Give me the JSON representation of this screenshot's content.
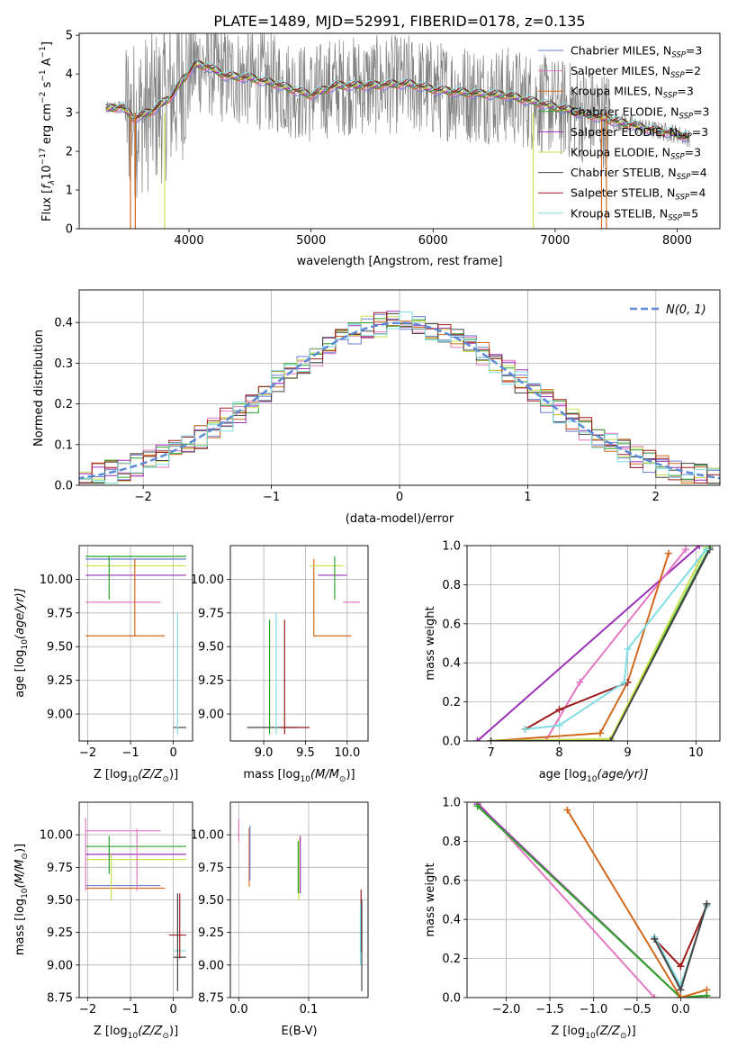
{
  "figure": {
    "title": "PLATE=1489, MJD=52991, FIBERID=0178, z=0.135"
  },
  "series_styles": [
    {
      "name": "Chabrier MILES",
      "sub": "N",
      "subscript": "SSP",
      "eq": "=3",
      "color": "#6b7fd6"
    },
    {
      "name": "Salpeter MILES",
      "sub": "N",
      "subscript": "SSP",
      "eq": "=2",
      "color": "#e377c2"
    },
    {
      "name": "Kroupa MILES",
      "sub": "N",
      "subscript": "SSP",
      "eq": "=3",
      "color": "#d2691e"
    },
    {
      "name": "Chabrier ELODIE",
      "sub": "N",
      "subscript": "SSP",
      "eq": "=3",
      "color": "#2ca02c"
    },
    {
      "name": "Salpeter ELODIE",
      "sub": "N",
      "subscript": "SSP",
      "eq": "=3",
      "color": "#9b30b8"
    },
    {
      "name": "Kroupa ELODIE",
      "sub": "N",
      "subscript": "SSP",
      "eq": "=3",
      "color": "#c8e04a"
    },
    {
      "name": "Chabrier STELIB",
      "sub": "N",
      "subscript": "SSP",
      "eq": "=4",
      "color": "#444444"
    },
    {
      "name": "Salpeter STELIB",
      "sub": "N",
      "subscript": "SSP",
      "eq": "=4",
      "color": "#9b1c1c"
    },
    {
      "name": "Kroupa STELIB",
      "sub": "N",
      "subscript": "SSP",
      "eq": "=5",
      "color": "#7fdde3"
    }
  ],
  "chart_data": [
    {
      "id": "spectrum",
      "type": "line",
      "xlabel": "wavelength [Angstrom, rest frame]",
      "ylabel_main": "Flux [",
      "ylabel_f": "f",
      "ylabel_lambda": "λ",
      "ylabel_rest": "10",
      "ylabel_exp": "−17",
      "ylabel_units": " erg cm",
      "ylabel_exp2": "−2",
      "ylabel_s": " s",
      "ylabel_exp3": "−1",
      "ylabel_A": " A",
      "ylabel_exp4": "−1",
      "ylabel_end": "]",
      "xlim": [
        3100,
        8350
      ],
      "ylim": [
        0,
        5.05
      ],
      "xticks": [
        4000,
        5000,
        6000,
        7000,
        8000
      ],
      "yticks": [
        0,
        1,
        2,
        3,
        4,
        5
      ],
      "data_color": "#808080",
      "legend_position": "right",
      "continuum": [
        [
          3320,
          3.1
        ],
        [
          3450,
          3.15
        ],
        [
          3550,
          2.85
        ],
        [
          3700,
          3.05
        ],
        [
          3850,
          3.4
        ],
        [
          3950,
          3.85
        ],
        [
          4050,
          4.25
        ],
        [
          4150,
          4.2
        ],
        [
          4300,
          3.95
        ],
        [
          4500,
          3.9
        ],
        [
          4700,
          3.75
        ],
        [
          4900,
          3.55
        ],
        [
          5000,
          3.45
        ],
        [
          5200,
          3.7
        ],
        [
          5500,
          3.7
        ],
        [
          5800,
          3.75
        ],
        [
          6000,
          3.6
        ],
        [
          6300,
          3.5
        ],
        [
          6600,
          3.45
        ],
        [
          6800,
          3.3
        ],
        [
          7000,
          3.15
        ],
        [
          7200,
          3.0
        ],
        [
          7400,
          2.85
        ],
        [
          7600,
          2.7
        ],
        [
          7800,
          2.55
        ],
        [
          8000,
          2.45
        ],
        [
          8100,
          2.35
        ]
      ]
    },
    {
      "id": "residuals",
      "type": "histogram",
      "xlabel": "(data-model)/error",
      "ylabel": "Normed distribution",
      "xlim": [
        -2.5,
        2.5
      ],
      "ylim": [
        0,
        0.48
      ],
      "xticks": [
        -2,
        -1,
        0,
        1,
        2
      ],
      "yticks": [
        0.0,
        0.1,
        0.2,
        0.3,
        0.4
      ],
      "legend": "N(0, 1)",
      "legend_position": "top-right",
      "normal_color": "#5b8bd6"
    },
    {
      "id": "age-Z",
      "type": "errorbar",
      "xlabel": "Z [log",
      "xlabel_sub": "10",
      "xlabel_rest": "(Z/Z",
      "xlabel_sun": "⊙",
      "xlabel_end": ")]",
      "ylabel": "age  [log",
      "ylabel_sub": "10",
      "ylabel_rest": "(age/yr)]",
      "xlim": [
        -2.2,
        0.45
      ],
      "ylim": [
        8.8,
        10.25
      ],
      "xticks": [
        -2,
        -1,
        0
      ],
      "yticks": [
        9.0,
        9.25,
        9.5,
        9.75,
        10.0
      ],
      "segments": [
        {
          "s": 0,
          "pts": [
            [
              -2.05,
              10.15
            ],
            [
              0.3,
              10.15
            ]
          ]
        },
        {
          "s": 4,
          "pts": [
            [
              -2.05,
              10.03
            ],
            [
              0.3,
              10.03
            ]
          ]
        },
        {
          "s": 5,
          "pts": [
            [
              -2.05,
              10.1
            ],
            [
              0.3,
              10.1
            ]
          ]
        },
        {
          "s": 3,
          "pts": [
            [
              -2.05,
              10.17
            ],
            [
              0.3,
              10.17
            ]
          ]
        },
        {
          "s": 1,
          "pts": [
            [
              -2.05,
              9.83
            ],
            [
              -0.3,
              9.83
            ]
          ]
        },
        {
          "s": 2,
          "pts": [
            [
              -2.05,
              9.58
            ],
            [
              -0.2,
              9.58
            ]
          ]
        },
        {
          "s": 2,
          "pts": [
            [
              -0.9,
              9.58
            ],
            [
              -0.9,
              10.15
            ]
          ]
        },
        {
          "s": 6,
          "pts": [
            [
              0.0,
              8.9
            ],
            [
              0.3,
              8.9
            ]
          ]
        },
        {
          "s": 8,
          "pts": [
            [
              0.1,
              8.85
            ],
            [
              0.1,
              9.75
            ]
          ]
        },
        {
          "s": 3,
          "pts": [
            [
              -1.5,
              9.85
            ],
            [
              -1.5,
              10.17
            ]
          ]
        }
      ]
    },
    {
      "id": "age-mass",
      "type": "errorbar",
      "xlabel": "mass [log",
      "xlabel_sub": "10",
      "xlabel_rest": "(M/M",
      "xlabel_sun": "⊙",
      "xlabel_end": ")]",
      "xlim": [
        8.6,
        10.25
      ],
      "ylim": [
        8.8,
        10.25
      ],
      "xticks": [
        9.0,
        9.5,
        10.0
      ],
      "yticks": [
        9.0,
        9.25,
        9.5,
        9.75,
        10.0
      ],
      "segments": [
        {
          "s": 6,
          "pts": [
            [
              8.8,
              8.9
            ],
            [
              9.4,
              8.9
            ]
          ]
        },
        {
          "s": 7,
          "pts": [
            [
              9.2,
              8.9
            ],
            [
              9.55,
              8.9
            ]
          ]
        },
        {
          "s": 8,
          "pts": [
            [
              9.15,
              8.85
            ],
            [
              9.15,
              9.75
            ]
          ]
        },
        {
          "s": 7,
          "pts": [
            [
              9.25,
              8.85
            ],
            [
              9.25,
              9.7
            ]
          ]
        },
        {
          "s": 3,
          "pts": [
            [
              9.07,
              8.85
            ],
            [
              9.07,
              9.7
            ]
          ]
        },
        {
          "s": 2,
          "pts": [
            [
              9.6,
              9.58
            ],
            [
              10.05,
              9.58
            ]
          ]
        },
        {
          "s": 2,
          "pts": [
            [
              9.6,
              9.58
            ],
            [
              9.6,
              10.15
            ]
          ]
        },
        {
          "s": 5,
          "pts": [
            [
              9.55,
              10.1
            ],
            [
              9.95,
              10.1
            ]
          ]
        },
        {
          "s": 4,
          "pts": [
            [
              9.65,
              10.03
            ],
            [
              10.0,
              10.03
            ]
          ]
        },
        {
          "s": 1,
          "pts": [
            [
              9.95,
              9.83
            ],
            [
              10.15,
              9.83
            ]
          ]
        },
        {
          "s": 3,
          "pts": [
            [
              9.85,
              9.85
            ],
            [
              9.85,
              10.17
            ]
          ]
        }
      ]
    },
    {
      "id": "massweight-age",
      "type": "line",
      "xlabel": "age  [log",
      "xlabel_sub": "10",
      "xlabel_rest": "(age/yr)]",
      "ylabel": "mass weight",
      "xlim": [
        6.65,
        10.35
      ],
      "ylim": [
        0,
        1.0
      ],
      "xticks": [
        7,
        8,
        9,
        10
      ],
      "yticks": [
        0.0,
        0.2,
        0.4,
        0.6,
        0.8,
        1.0
      ],
      "series": [
        {
          "s": 4,
          "x": [
            6.8,
            10.05
          ],
          "y": [
            0.0,
            1.0
          ]
        },
        {
          "s": 1,
          "x": [
            7.8,
            8.3,
            9.85
          ],
          "y": [
            0.0,
            0.3,
            0.98
          ]
        },
        {
          "s": 2,
          "x": [
            7.0,
            8.6,
            9.0,
            9.6
          ],
          "y": [
            0.0,
            0.04,
            0.3,
            0.96
          ]
        },
        {
          "s": 3,
          "x": [
            7.0,
            8.75,
            10.2
          ],
          "y": [
            0.0,
            0.01,
            0.99
          ]
        },
        {
          "s": 5,
          "x": [
            7.0,
            8.75,
            10.15
          ],
          "y": [
            0.0,
            0.01,
            0.99
          ]
        },
        {
          "s": 6,
          "x": [
            7.0,
            8.75,
            10.2
          ],
          "y": [
            0.0,
            0.0,
            0.98
          ]
        },
        {
          "s": 7,
          "x": [
            7.5,
            8.0,
            9.0
          ],
          "y": [
            0.06,
            0.16,
            0.3
          ]
        },
        {
          "s": 8,
          "x": [
            7.5,
            8.0,
            8.95,
            9.0,
            10.15
          ],
          "y": [
            0.06,
            0.08,
            0.3,
            0.47,
            0.98
          ]
        }
      ]
    },
    {
      "id": "mass-Z",
      "type": "errorbar",
      "xlabel": "Z [log",
      "xlabel_sub": "10",
      "xlabel_rest": "(Z/Z",
      "xlabel_sun": "⊙",
      "xlabel_end": ")]",
      "ylabel": "mass [log",
      "ylabel_sub": "10",
      "ylabel_rest": "(M/M",
      "ylabel_sun": "⊙",
      "ylabel_end": ")]",
      "xlim": [
        -2.2,
        0.45
      ],
      "ylim": [
        8.75,
        10.25
      ],
      "xticks": [
        -2,
        -1,
        0
      ],
      "yticks": [
        8.75,
        9.0,
        9.25,
        9.5,
        9.75,
        10.0
      ],
      "segments": [
        {
          "s": 1,
          "pts": [
            [
              -2.05,
              10.03
            ],
            [
              -0.3,
              10.03
            ]
          ]
        },
        {
          "s": 3,
          "pts": [
            [
              -2.05,
              9.91
            ],
            [
              0.3,
              9.91
            ]
          ]
        },
        {
          "s": 4,
          "pts": [
            [
              -2.05,
              9.85
            ],
            [
              0.3,
              9.85
            ]
          ]
        },
        {
          "s": 5,
          "pts": [
            [
              -2.05,
              9.81
            ],
            [
              0.3,
              9.81
            ]
          ]
        },
        {
          "s": 0,
          "pts": [
            [
              -2.05,
              9.61
            ],
            [
              -0.3,
              9.61
            ]
          ]
        },
        {
          "s": 2,
          "pts": [
            [
              -2.05,
              9.59
            ],
            [
              -0.2,
              9.59
            ]
          ]
        },
        {
          "s": 7,
          "pts": [
            [
              -0.1,
              9.23
            ],
            [
              0.3,
              9.23
            ]
          ]
        },
        {
          "s": 8,
          "pts": [
            [
              0.0,
              9.11
            ],
            [
              0.3,
              9.11
            ]
          ]
        },
        {
          "s": 6,
          "pts": [
            [
              0.0,
              9.06
            ],
            [
              0.3,
              9.06
            ]
          ]
        },
        {
          "s": 7,
          "pts": [
            [
              0.15,
              9.05
            ],
            [
              0.15,
              9.55
            ]
          ]
        },
        {
          "s": 6,
          "pts": [
            [
              0.1,
              8.8
            ],
            [
              0.1,
              9.55
            ]
          ]
        },
        {
          "s": 3,
          "pts": [
            [
              -1.5,
              9.7
            ],
            [
              -1.5,
              9.99
            ]
          ]
        },
        {
          "s": 5,
          "pts": [
            [
              -1.45,
              9.5
            ],
            [
              -1.45,
              9.85
            ]
          ]
        },
        {
          "s": 1,
          "pts": [
            [
              -2.05,
              9.57
            ],
            [
              -2.05,
              10.13
            ]
          ]
        },
        {
          "s": 1,
          "pts": [
            [
              -0.85,
              9.57
            ],
            [
              -0.85,
              10.05
            ]
          ]
        }
      ]
    },
    {
      "id": "mass-EBV",
      "type": "errorbar",
      "xlabel": "E(B-V)",
      "xlim": [
        -0.012,
        0.185
      ],
      "ylim": [
        8.75,
        10.25
      ],
      "xticks": [
        0.0,
        0.1
      ],
      "yticks": [
        8.75,
        9.0,
        9.25,
        9.5,
        9.75,
        10.0
      ],
      "segments": [
        {
          "s": 1,
          "pts": [
            [
              0.0,
              9.95
            ],
            [
              0.0,
              10.12
            ]
          ]
        },
        {
          "s": 2,
          "pts": [
            [
              0.015,
              9.6
            ],
            [
              0.015,
              10.05
            ]
          ]
        },
        {
          "s": 0,
          "pts": [
            [
              0.016,
              9.65
            ],
            [
              0.016,
              10.07
            ]
          ]
        },
        {
          "s": 5,
          "pts": [
            [
              0.086,
              9.5
            ],
            [
              0.086,
              9.97
            ]
          ]
        },
        {
          "s": 4,
          "pts": [
            [
              0.088,
              9.55
            ],
            [
              0.088,
              9.99
            ]
          ]
        },
        {
          "s": 3,
          "pts": [
            [
              0.085,
              9.55
            ],
            [
              0.085,
              9.95
            ]
          ]
        },
        {
          "s": 7,
          "pts": [
            [
              0.175,
              9.1
            ],
            [
              0.175,
              9.58
            ]
          ]
        },
        {
          "s": 6,
          "pts": [
            [
              0.176,
              8.8
            ],
            [
              0.176,
              9.5
            ]
          ]
        },
        {
          "s": 8,
          "pts": [
            [
              0.174,
              9.0
            ],
            [
              0.174,
              9.47
            ]
          ]
        }
      ]
    },
    {
      "id": "massweight-Z",
      "type": "line",
      "xlabel": "Z [log",
      "xlabel_sub": "10",
      "xlabel_rest": "(Z/Z",
      "xlabel_sun": "⊙",
      "xlabel_end": ")]",
      "ylabel": "mass weight",
      "xlim": [
        -2.45,
        0.45
      ],
      "ylim": [
        0,
        1.0
      ],
      "xticks": [
        -2.0,
        -1.5,
        -1.0,
        -0.5,
        0.0
      ],
      "yticks": [
        0.0,
        0.2,
        0.4,
        0.6,
        0.8,
        1.0
      ],
      "series": [
        {
          "s": 1,
          "x": [
            -2.33,
            -0.3
          ],
          "y": [
            1.0,
            0.0
          ]
        },
        {
          "s": 4,
          "x": [
            -2.33,
            0.0,
            0.3
          ],
          "y": [
            0.99,
            0.0,
            0.01
          ]
        },
        {
          "s": 5,
          "x": [
            -2.33,
            0.0,
            0.3
          ],
          "y": [
            0.98,
            0.0,
            0.01
          ]
        },
        {
          "s": 3,
          "x": [
            -2.33,
            0.0,
            0.3
          ],
          "y": [
            0.98,
            0.0,
            0.01
          ]
        },
        {
          "s": 2,
          "x": [
            -1.3,
            0.0,
            0.3
          ],
          "y": [
            0.96,
            0.0,
            0.04
          ]
        },
        {
          "s": 7,
          "x": [
            -0.3,
            0.0,
            0.3
          ],
          "y": [
            0.3,
            0.16,
            0.47
          ]
        },
        {
          "s": 8,
          "x": [
            -0.3,
            0.0,
            0.3
          ],
          "y": [
            0.31,
            0.06,
            0.47
          ]
        },
        {
          "s": 6,
          "x": [
            -0.3,
            0.0,
            0.3
          ],
          "y": [
            0.3,
            0.04,
            0.48
          ]
        }
      ]
    }
  ]
}
